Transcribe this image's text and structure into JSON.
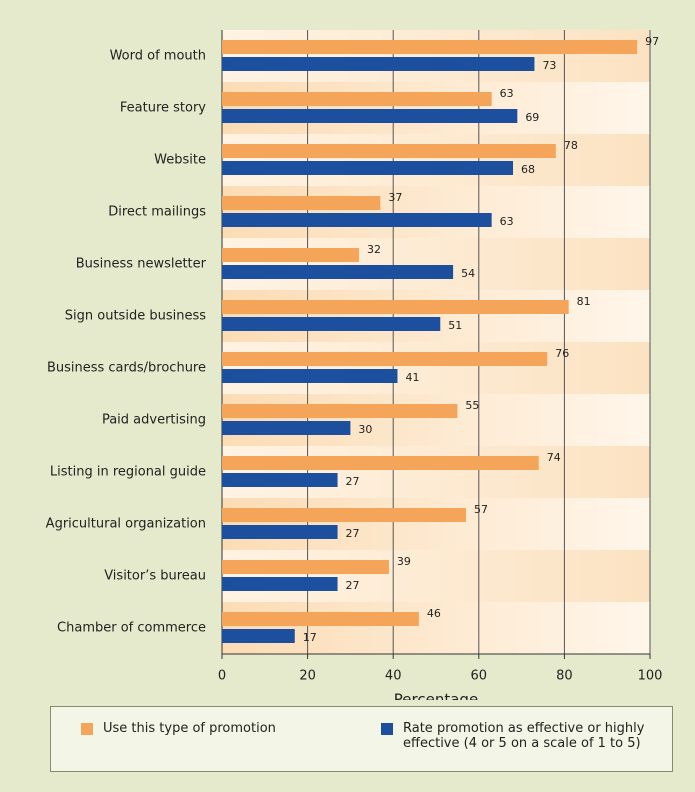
{
  "chart_data": {
    "type": "bar",
    "orientation": "horizontal",
    "categories": [
      "Word of mouth",
      "Feature story",
      "Website",
      "Direct mailings",
      "Business newsletter",
      "Sign outside business",
      "Business cards/brochure",
      "Paid advertising",
      "Listing in regional guide",
      "Agricultural organization",
      "Visitor’s bureau",
      "Chamber of commerce"
    ],
    "series": [
      {
        "name": "Use this type of promotion",
        "color": "#f4a55a",
        "values": [
          97,
          63,
          78,
          37,
          32,
          81,
          76,
          55,
          74,
          57,
          39,
          46
        ]
      },
      {
        "name": "Rate promotion as effective or highly effective (4 or 5 on a scale of 1 to 5)",
        "color": "#1d4f9f",
        "values": [
          73,
          69,
          68,
          63,
          54,
          51,
          41,
          30,
          27,
          27,
          27,
          17
        ]
      }
    ],
    "xlabel": "Percentage",
    "xlim": [
      0,
      100
    ],
    "xticks": [
      0,
      20,
      40,
      60,
      80,
      100
    ],
    "grid": true
  }
}
